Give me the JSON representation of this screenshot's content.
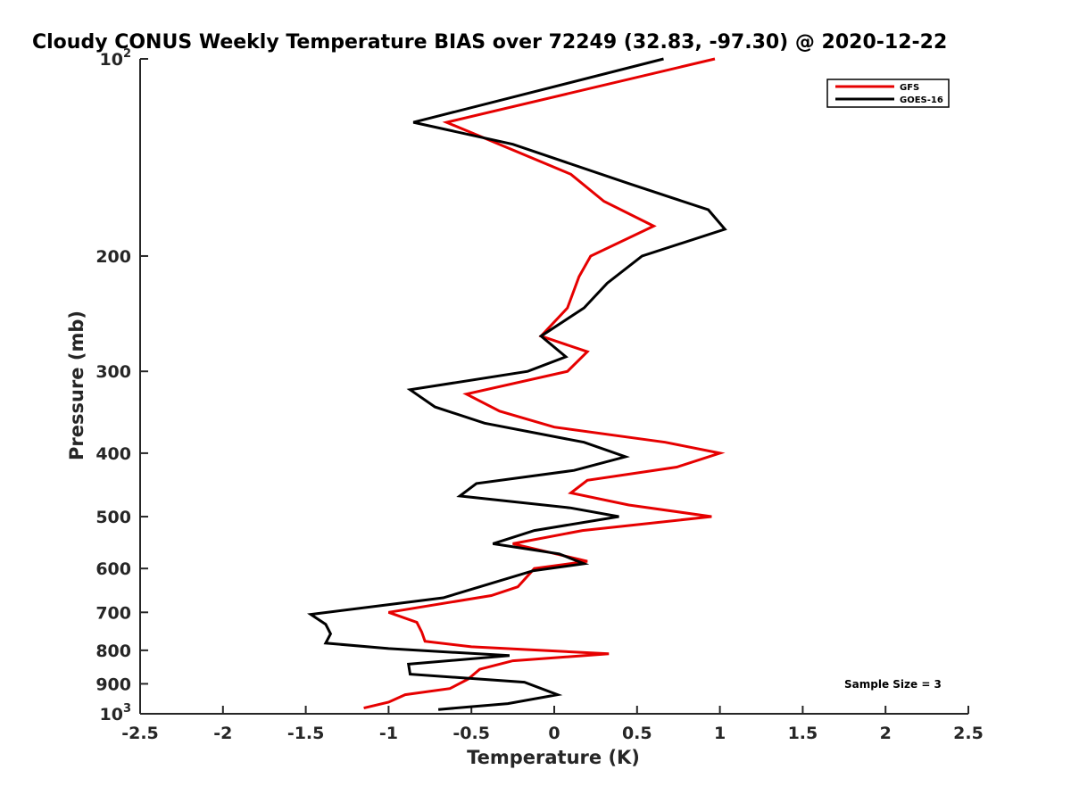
{
  "chart_data": {
    "type": "line",
    "title": "Cloudy CONUS Weekly Temperature BIAS over 72249 (32.83, -97.30) @ 2020-12-22",
    "xlabel": "Temperature (K)",
    "ylabel": "Pressure (mb)",
    "xlim": [
      -2.5,
      2.5
    ],
    "ylim": [
      1000,
      100
    ],
    "yscale": "log",
    "y_reversed": true,
    "grid": false,
    "legend_position": "top-right",
    "x_ticks": [
      "-2.5",
      "-2",
      "-1.5",
      "-1",
      "-0.5",
      "0",
      "0.5",
      "1",
      "1.5",
      "2",
      "2.5"
    ],
    "x_tick_values": [
      -2.5,
      -2,
      -1.5,
      -1,
      -0.5,
      0,
      0.5,
      1,
      1.5,
      2,
      2.5
    ],
    "y_ticks": [
      {
        "value": 100,
        "base": "10",
        "exp": "2"
      },
      {
        "value": 200,
        "label": "200"
      },
      {
        "value": 300,
        "label": "300"
      },
      {
        "value": 400,
        "label": "400"
      },
      {
        "value": 500,
        "label": "500"
      },
      {
        "value": 600,
        "label": "600"
      },
      {
        "value": 700,
        "label": "700"
      },
      {
        "value": 800,
        "label": "800"
      },
      {
        "value": 900,
        "label": "900"
      },
      {
        "value": 1000,
        "base": "10",
        "exp": "3"
      }
    ],
    "annotation": "Sample Size = 3",
    "series": [
      {
        "name": "GFS",
        "color": "#e60000",
        "points": [
          [
            0.97,
            100
          ],
          [
            -0.65,
            125
          ],
          [
            0.1,
            150
          ],
          [
            0.3,
            165
          ],
          [
            0.6,
            180
          ],
          [
            0.22,
            200
          ],
          [
            0.15,
            215
          ],
          [
            0.08,
            240
          ],
          [
            -0.08,
            265
          ],
          [
            0.2,
            280
          ],
          [
            0.08,
            300
          ],
          [
            -0.53,
            325
          ],
          [
            -0.33,
            345
          ],
          [
            0,
            365
          ],
          [
            0.67,
            385
          ],
          [
            1.0,
            400
          ],
          [
            0.74,
            420
          ],
          [
            0.2,
            440
          ],
          [
            0.1,
            460
          ],
          [
            0.45,
            480
          ],
          [
            0.95,
            500
          ],
          [
            0.17,
            525
          ],
          [
            -0.25,
            550
          ],
          [
            0.2,
            585
          ],
          [
            -0.12,
            600
          ],
          [
            -0.22,
            640
          ],
          [
            -0.38,
            660
          ],
          [
            -1.0,
            700
          ],
          [
            -0.83,
            725
          ],
          [
            -0.8,
            750
          ],
          [
            -0.78,
            775
          ],
          [
            -0.5,
            790
          ],
          [
            0.33,
            810
          ],
          [
            -0.25,
            830
          ],
          [
            -0.45,
            855
          ],
          [
            -0.52,
            885
          ],
          [
            -0.63,
            915
          ],
          [
            -0.9,
            935
          ],
          [
            -1.0,
            960
          ],
          [
            -1.15,
            980
          ]
        ]
      },
      {
        "name": "GOES-16",
        "color": "#000000",
        "points": [
          [
            0.66,
            100
          ],
          [
            -0.85,
            125
          ],
          [
            -0.25,
            135
          ],
          [
            0.45,
            155
          ],
          [
            0.93,
            170
          ],
          [
            1.03,
            182
          ],
          [
            0.53,
            200
          ],
          [
            0.32,
            220
          ],
          [
            0.18,
            240
          ],
          [
            -0.08,
            265
          ],
          [
            0.07,
            285
          ],
          [
            -0.16,
            300
          ],
          [
            -0.87,
            320
          ],
          [
            -0.72,
            340
          ],
          [
            -0.42,
            360
          ],
          [
            0.18,
            385
          ],
          [
            0.43,
            405
          ],
          [
            0.12,
            425
          ],
          [
            -0.47,
            445
          ],
          [
            -0.57,
            465
          ],
          [
            0.1,
            485
          ],
          [
            0.39,
            500
          ],
          [
            -0.12,
            525
          ],
          [
            -0.37,
            550
          ],
          [
            0.03,
            570
          ],
          [
            0.18,
            590
          ],
          [
            -0.13,
            605
          ],
          [
            -0.45,
            640
          ],
          [
            -0.67,
            665
          ],
          [
            -1.47,
            705
          ],
          [
            -1.38,
            730
          ],
          [
            -1.35,
            755
          ],
          [
            -1.38,
            780
          ],
          [
            -1.0,
            795
          ],
          [
            -0.27,
            815
          ],
          [
            -0.88,
            840
          ],
          [
            -0.87,
            870
          ],
          [
            -0.18,
            895
          ],
          [
            0.02,
            935
          ],
          [
            -0.28,
            965
          ],
          [
            -0.7,
            985
          ]
        ]
      }
    ]
  }
}
